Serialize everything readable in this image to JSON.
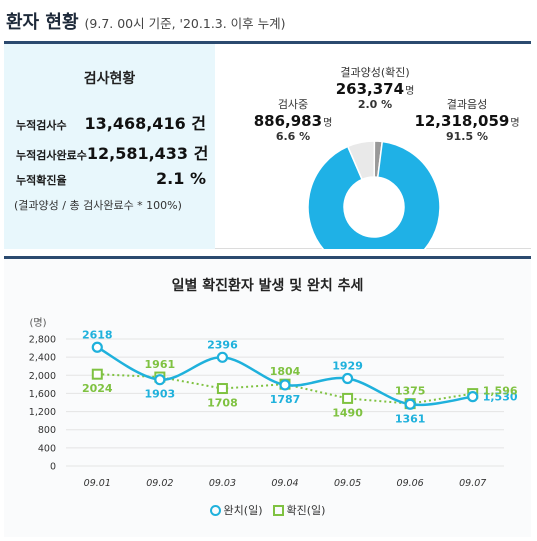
{
  "header": {
    "title": "환자 현황",
    "subtitle": "(9.7. 00시 기준, '20.1.3. 이후 누계)"
  },
  "stats": {
    "title": "검사현황",
    "rows": [
      {
        "label": "누적검사수",
        "value": "13,468,416 건"
      },
      {
        "label": "누적검사완료수",
        "value": "12,581,433 건"
      },
      {
        "label": "누적확진율",
        "value": "2.1 %"
      }
    ],
    "note": "(결과양성 / 총 검사완료수 * 100%)"
  },
  "donut": {
    "unit": "명",
    "segments": [
      {
        "name": "결과음성",
        "value": "12,318,059",
        "pct": "91.5 %",
        "fraction": 0.915,
        "color": "#1fb1e6"
      },
      {
        "name": "검사중",
        "value": "886,983",
        "pct": "6.6 %",
        "fraction": 0.066,
        "color": "#e9e9e9"
      },
      {
        "name": "결과양성(확진)",
        "value": "263,374",
        "pct": "2.0 %",
        "fraction": 0.02,
        "color": "#999999"
      }
    ]
  },
  "chart_title": "일별 확진환자 발생 및 완치 추세",
  "chart_data": {
    "type": "line",
    "ylabel": "(명)",
    "ylim": [
      0,
      2800
    ],
    "yticks": [
      0,
      400,
      800,
      1200,
      1600,
      2000,
      2400,
      2800
    ],
    "ytick_labels": [
      "0",
      "400",
      "800",
      "1,200",
      "1,600",
      "2,000",
      "2,400",
      "2,800"
    ],
    "categories": [
      "09.01",
      "09.02",
      "09.03",
      "09.04",
      "09.05",
      "09.06",
      "09.07"
    ],
    "series": [
      {
        "name": "완치(일)",
        "values": [
          2618,
          1903,
          2396,
          1787,
          1929,
          1361,
          1530
        ],
        "labels": [
          "2618",
          "1903",
          "2396",
          "1787",
          "1929",
          "1361",
          "1,530"
        ],
        "color": "#1fb1dc"
      },
      {
        "name": "확진(일)",
        "values": [
          2024,
          1961,
          1708,
          1804,
          1490,
          1375,
          1596
        ],
        "labels": [
          "2024",
          "1961",
          "1708",
          "1804",
          "1490",
          "1375",
          "1,596"
        ],
        "color": "#7fc241"
      }
    ]
  }
}
